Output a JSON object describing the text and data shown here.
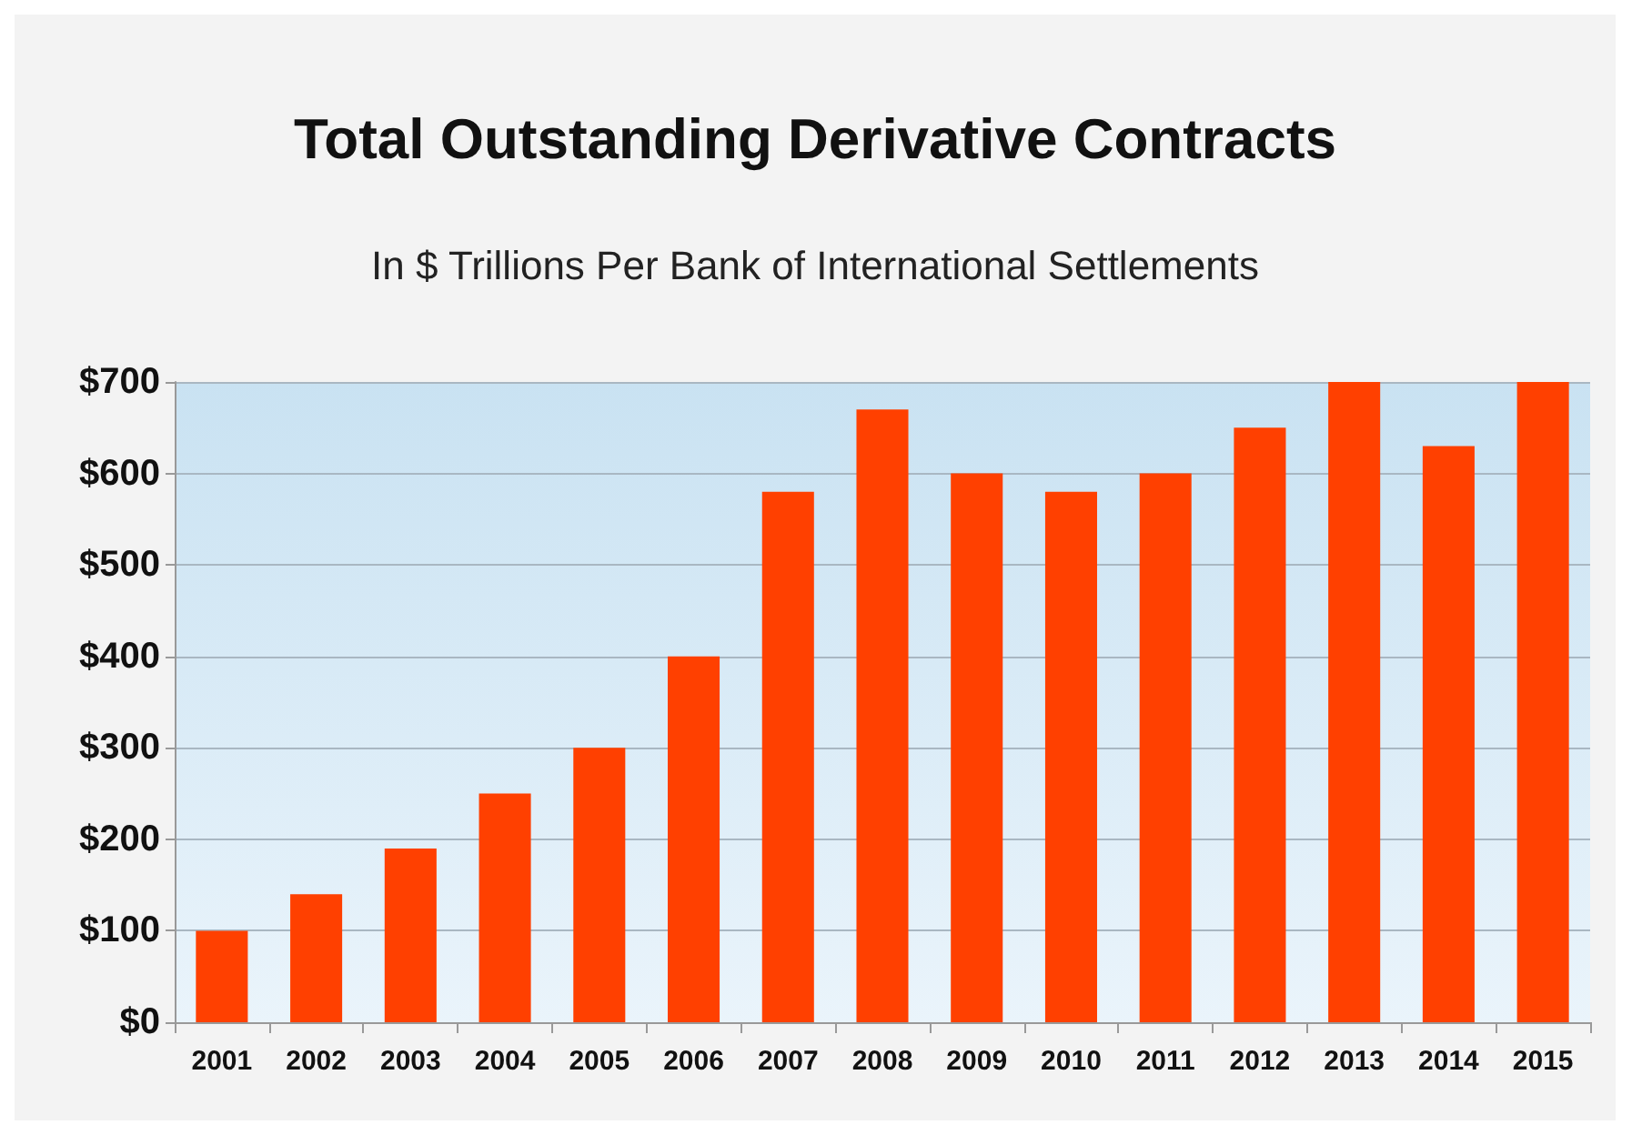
{
  "chart_data": {
    "type": "bar",
    "title": "Total Outstanding Derivative Contracts",
    "subtitle": "In $ Trillions Per Bank of International Settlements",
    "categories": [
      "2001",
      "2002",
      "2003",
      "2004",
      "2005",
      "2006",
      "2007",
      "2008",
      "2009",
      "2010",
      "2011",
      "2012",
      "2013",
      "2014",
      "2015"
    ],
    "values": [
      100,
      140,
      190,
      250,
      300,
      400,
      580,
      670,
      600,
      580,
      600,
      650,
      700,
      630,
      700
    ],
    "color": "#ff4000",
    "ylim": [
      0,
      700
    ],
    "yticks": [
      {
        "value": 0,
        "label": "$0"
      },
      {
        "value": 100,
        "label": "$100"
      },
      {
        "value": 200,
        "label": "$200"
      },
      {
        "value": 300,
        "label": "$300"
      },
      {
        "value": 400,
        "label": "$400"
      },
      {
        "value": 500,
        "label": "$500"
      },
      {
        "value": 600,
        "label": "$600"
      },
      {
        "value": 700,
        "label": "$700"
      }
    ],
    "grid": "y"
  }
}
